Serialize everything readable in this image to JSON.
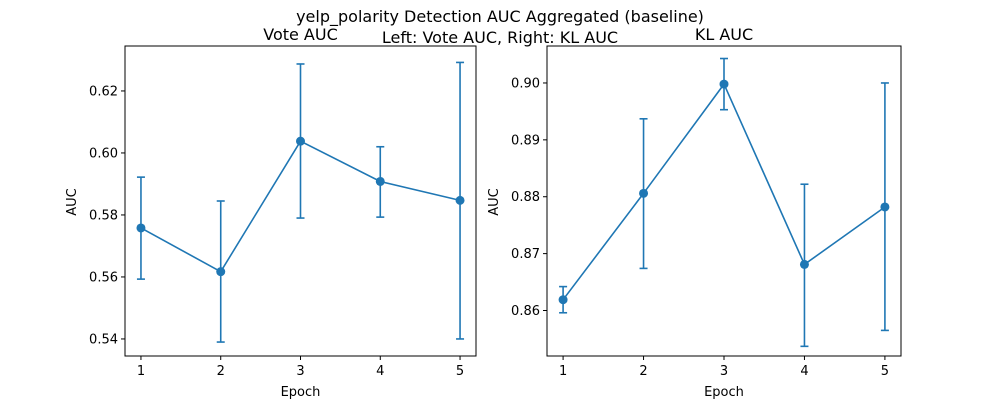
{
  "figure": {
    "title_line1": "yelp_polarity Detection AUC Aggregated (baseline)",
    "title_line2": "Left: Vote AUC, Right: KL AUC"
  },
  "chart_data": [
    {
      "type": "line",
      "title": "Vote AUC",
      "xlabel": "Epoch",
      "ylabel": "AUC",
      "x": [
        1,
        2,
        3,
        4,
        5
      ],
      "xticks": [
        "1",
        "2",
        "3",
        "4",
        "5"
      ],
      "yticks": [
        "0.54",
        "0.56",
        "0.58",
        "0.60",
        "0.62"
      ],
      "xlim": [
        0.8,
        5.2
      ],
      "ylim": [
        0.5345,
        0.6345
      ],
      "grid": false,
      "series": [
        {
          "values": [
            0.5758,
            0.5617,
            0.6038,
            0.5908,
            0.5847
          ],
          "err_low": [
            0.5593,
            0.539,
            0.579,
            0.5793,
            0.54
          ],
          "err_high": [
            0.5922,
            0.5845,
            0.6287,
            0.602,
            0.6292
          ],
          "color": "#1f77b4",
          "marker": "circle"
        }
      ]
    },
    {
      "type": "line",
      "title": "KL AUC",
      "xlabel": "Epoch",
      "ylabel": "AUC",
      "x": [
        1,
        2,
        3,
        4,
        5
      ],
      "xticks": [
        "1",
        "2",
        "3",
        "4",
        "5"
      ],
      "yticks": [
        "0.86",
        "0.87",
        "0.88",
        "0.89",
        "0.90"
      ],
      "xlim": [
        0.8,
        5.2
      ],
      "ylim": [
        0.852,
        0.9065
      ],
      "grid": false,
      "series": [
        {
          "values": [
            0.8619,
            0.8806,
            0.8998,
            0.8681,
            0.8782
          ],
          "err_low": [
            0.8596,
            0.8674,
            0.8953,
            0.8537,
            0.8565
          ],
          "err_high": [
            0.8642,
            0.8937,
            0.9043,
            0.8822,
            0.9
          ],
          "color": "#1f77b4",
          "marker": "circle"
        }
      ]
    }
  ]
}
